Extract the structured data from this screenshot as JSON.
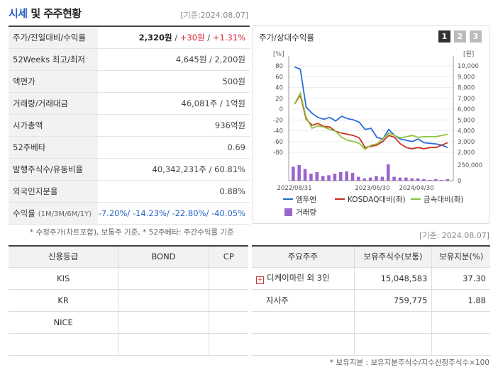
{
  "header": {
    "title_a": "시세",
    "title_b": " 및 주주현황",
    "asof": "[기준:2024.08.07]"
  },
  "summary": {
    "rows": [
      {
        "label": "주가/전일대비/수익률"
      },
      {
        "label": "52Weeks 최고/최저",
        "value": "4,645원 / 2,200원"
      },
      {
        "label": "액면가",
        "value": "500원"
      },
      {
        "label": "거래량/거래대금",
        "value": "46,081주 / 1억원"
      },
      {
        "label": "시가총액",
        "value": "936억원"
      },
      {
        "label": "52주베타",
        "value": "0.69"
      },
      {
        "label": "발행주식수/유동비율",
        "value": "40,342,231주 / 60.81%"
      },
      {
        "label": "외국인지분율",
        "value": "0.88%"
      },
      {
        "label": "수익률",
        "label_sub": "(1M/3M/6M/1Y)"
      }
    ],
    "price": "2,320원",
    "change": "+30원",
    "change_pct": "+1.31%",
    "sep": " / ",
    "returns": [
      "-7.20%",
      "-14.23%",
      "-22.80%",
      "-40.05%"
    ],
    "returns_sep": "/ "
  },
  "note1": "* 수정주가(차트포함), 보통주 기준, * 52주베타: 주간수익률 기준",
  "chart": {
    "title": "주가/상대수익률",
    "pages": [
      "1",
      "2",
      "3"
    ],
    "active_page": 0,
    "left_unit": "[%]",
    "right_unit": "[원]",
    "left_ticks": [
      "80",
      "60",
      "40",
      "20",
      "0",
      "-20",
      "-40",
      "-60",
      "-80"
    ],
    "right_ticks": [
      "10,000",
      "9,000",
      "8,000",
      "7,000",
      "6,000",
      "5,000",
      "4,000",
      "3,000",
      "2,000"
    ],
    "volume_ticks": [
      "250,000",
      "0"
    ],
    "x_ticks": [
      "2022/08/31",
      "2023/06/30",
      "2024/04/30"
    ],
    "legend": [
      "엠투엔",
      "KOSDAQ대비(좌)",
      "금속대비(좌)",
      "거래량"
    ],
    "colors": {
      "company": "#2b6dd6",
      "kosdaq": "#c8321e",
      "metal": "#8cc43c",
      "volume": "#9966cc"
    }
  },
  "chart_data": {
    "type": "line",
    "x_labels": [
      "2022/08/31",
      "2023/06/30",
      "2024/04/30"
    ],
    "ylim": [
      -80,
      80
    ],
    "series": [
      {
        "name": "엠투엔",
        "values": [
          62,
          58,
          -5,
          -15,
          -22,
          -25,
          -22,
          -28,
          -20,
          -24,
          -26,
          -30,
          -42,
          -40,
          -55,
          -58,
          -42,
          -52,
          -58,
          -60,
          -62,
          -58,
          -64,
          -65,
          -66,
          -68,
          -72
        ]
      },
      {
        "name": "KOSDAQ대비(좌)",
        "values": [
          0,
          15,
          -25,
          -35,
          -32,
          -37,
          -38,
          -45,
          -48,
          -50,
          -52,
          -56,
          -72,
          -70,
          -68,
          -62,
          -52,
          -55,
          -66,
          -72,
          -74,
          -72,
          -74,
          -72,
          -72,
          -68,
          -64
        ]
      },
      {
        "name": "금속대비(좌)",
        "values": [
          0,
          18,
          -22,
          -40,
          -36,
          -38,
          -42,
          -45,
          -55,
          -60,
          -62,
          -65,
          -75,
          -68,
          -66,
          -58,
          -48,
          -52,
          -56,
          -54,
          -52,
          -55,
          -54,
          -54,
          -54,
          -52,
          -50
        ]
      }
    ],
    "volume": {
      "name": "거래량",
      "values": [
        0.9,
        1.0,
        0.75,
        0.45,
        0.55,
        0.3,
        0.35,
        0.45,
        0.55,
        0.6,
        0.5,
        0.25,
        0.15,
        0.2,
        0.3,
        0.25,
        1.05,
        0.25,
        0.2,
        0.2,
        0.15,
        0.15,
        0.1,
        0.05,
        0.1,
        0.05,
        0.1
      ]
    }
  },
  "asof2": "[기준: 2024.08.07]",
  "credit": {
    "headers": [
      "신용등급",
      "BOND",
      "CP"
    ],
    "rows": [
      [
        "KIS",
        "",
        ""
      ],
      [
        "KR",
        "",
        ""
      ],
      [
        "NICE",
        "",
        ""
      ],
      [
        "",
        "",
        ""
      ]
    ]
  },
  "holders": {
    "headers": [
      "주요주주",
      "보유주식수(보통)",
      "보유지분(%)"
    ],
    "rows": [
      {
        "name": "디케이마린 외 3인",
        "shares": "15,048,583",
        "pct": "37.30",
        "expand": "+"
      },
      {
        "name": "자사주",
        "shares": "759,775",
        "pct": "1.88"
      },
      {
        "name": "",
        "shares": "",
        "pct": ""
      },
      {
        "name": "",
        "shares": "",
        "pct": ""
      }
    ]
  },
  "note2": "* 보유지분 : 보유지분주식수/지수산정주식수×100"
}
